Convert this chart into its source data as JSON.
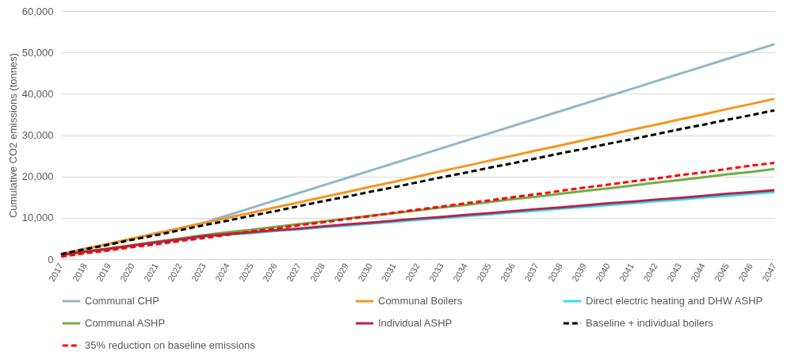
{
  "chart_data": {
    "type": "line",
    "ylabel": "Cumulative CO2 emissions (tonnes)",
    "categories": [
      "2017",
      "2018",
      "2019",
      "2020",
      "2021",
      "2022",
      "2023",
      "2024",
      "2025",
      "2026",
      "2027",
      "2028",
      "2029",
      "2030",
      "2031",
      "2032",
      "2033",
      "2034",
      "2035",
      "2036",
      "2037",
      "2038",
      "2039",
      "2040",
      "2041",
      "2042",
      "2043",
      "2044",
      "2045",
      "2046",
      "2047"
    ],
    "ylim": [
      0,
      60000
    ],
    "yticks": [
      {
        "value": 0,
        "label": "0"
      },
      {
        "value": 10000,
        "label": "10,000"
      },
      {
        "value": 20000,
        "label": "20,000"
      },
      {
        "value": 30000,
        "label": "30,000"
      },
      {
        "value": 40000,
        "label": "40,000"
      },
      {
        "value": 50000,
        "label": "50,000"
      },
      {
        "value": 60000,
        "label": "60,000"
      }
    ],
    "grid": "y",
    "legend": "bottom",
    "marker": "none",
    "series": [
      {
        "name": "Communal CHP",
        "color": "#8fb8c9",
        "line_style": "solid",
        "values": [
          1200,
          2500,
          3700,
          5000,
          6300,
          7500,
          8800,
          10600,
          12400,
          14200,
          16000,
          17800,
          19600,
          21400,
          23200,
          25000,
          26800,
          28600,
          30400,
          32200,
          34000,
          35800,
          37600,
          39400,
          41200,
          43000,
          44800,
          46600,
          48400,
          50200,
          52000
        ]
      },
      {
        "name": "Communal Boilers",
        "color": "#f7941d",
        "line_style": "solid",
        "values": [
          1200,
          2500,
          3700,
          5000,
          6200,
          7500,
          8700,
          10000,
          11200,
          12500,
          13700,
          15000,
          16200,
          17500,
          18700,
          20000,
          21300,
          22500,
          23800,
          25000,
          26300,
          27500,
          28800,
          30000,
          31300,
          32500,
          33800,
          35000,
          36300,
          37500,
          38800
        ]
      },
      {
        "name": "Direct electric heating and DHW ASHP",
        "color": "#33ddee",
        "line_style": "solid",
        "values": [
          900,
          1700,
          2400,
          3200,
          3900,
          4700,
          5400,
          5900,
          6300,
          6800,
          7200,
          7700,
          8100,
          8600,
          9000,
          9500,
          9900,
          10400,
          10800,
          11300,
          11700,
          12200,
          12600,
          13100,
          13500,
          14000,
          14400,
          14900,
          15300,
          15800,
          16200
        ]
      },
      {
        "name": "Communal ASHP",
        "color": "#70ad47",
        "line_style": "solid",
        "values": [
          1000,
          1800,
          2600,
          3400,
          4200,
          5000,
          5800,
          6500,
          7100,
          7800,
          8500,
          9100,
          9800,
          10500,
          11100,
          11800,
          12500,
          13100,
          13800,
          14500,
          15100,
          15800,
          16500,
          17100,
          17800,
          18500,
          19100,
          19800,
          20500,
          21100,
          21800
        ]
      },
      {
        "name": "Individual ASHP",
        "color": "#b5234b",
        "line_style": "solid",
        "values": [
          1000,
          1800,
          2500,
          3300,
          4100,
          4800,
          5600,
          6100,
          6500,
          7000,
          7400,
          7900,
          8400,
          8800,
          9300,
          9800,
          10200,
          10700,
          11100,
          11600,
          12100,
          12500,
          13000,
          13500,
          13900,
          14400,
          14800,
          15300,
          15800,
          16200,
          16700
        ]
      },
      {
        "name": "Baseline + individual boilers",
        "color": "#000000",
        "line_style": "dashed",
        "values": [
          1200,
          2400,
          3500,
          4700,
          5800,
          7000,
          8200,
          9300,
          10500,
          11600,
          12800,
          14000,
          15100,
          16300,
          17400,
          18600,
          19800,
          20900,
          22100,
          23200,
          24400,
          25600,
          26700,
          27900,
          29000,
          30200,
          31400,
          32500,
          33700,
          34800,
          36000
        ]
      },
      {
        "name": "35% reduction on baseline emissions",
        "color": "#ff0000",
        "line_style": "dashed",
        "values": [
          600,
          1400,
          2100,
          2900,
          3600,
          4400,
          5100,
          5900,
          6700,
          7400,
          8200,
          8900,
          9700,
          10400,
          11200,
          12000,
          12700,
          13500,
          14200,
          15000,
          15700,
          16500,
          17300,
          18000,
          18800,
          19500,
          20300,
          21000,
          21800,
          22600,
          23300
        ]
      }
    ]
  }
}
